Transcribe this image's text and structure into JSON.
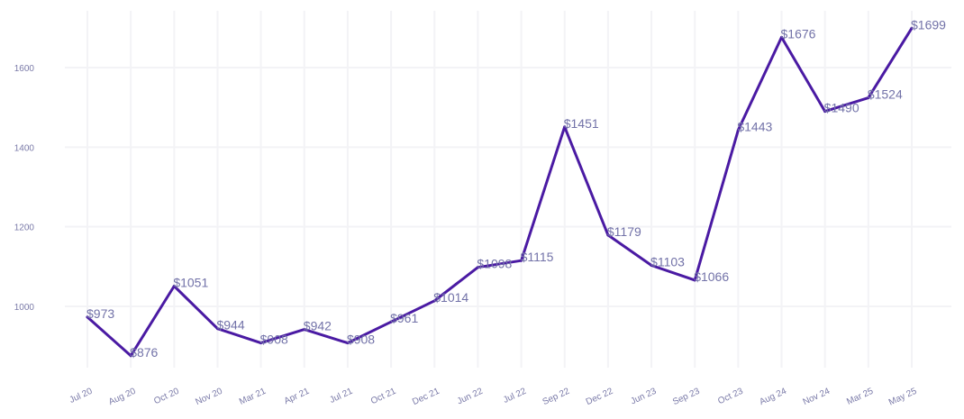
{
  "colors": {
    "line": "#4a1aa3",
    "labels": "#7272a8",
    "ticks": "#7a7aa8",
    "grid": "#f3f3f6"
  },
  "chart_data": {
    "type": "line",
    "title": "",
    "xlabel": "",
    "ylabel": "",
    "grid": true,
    "legend": "none",
    "ylim": [
      840,
      1720
    ],
    "y_ticks": [
      1000,
      1200,
      1400,
      1600
    ],
    "categories": [
      "Jul 20",
      "Aug 20",
      "Oct 20",
      "Nov 20",
      "Mar 21",
      "Apr 21",
      "Jul 21",
      "Oct 21",
      "Dec 21",
      "Jun 22",
      "Jul 22",
      "Sep 22",
      "Dec 22",
      "Jun 23",
      "Sep 23",
      "Oct 23",
      "Aug 24",
      "Nov 24",
      "Mar 25",
      "May 25"
    ],
    "series": [
      {
        "values": [
          973,
          876,
          1051,
          944,
          908,
          942,
          908,
          961,
          1014,
          1098,
          1115,
          1451,
          1179,
          1103,
          1066,
          1443,
          1676,
          1490,
          1524,
          1699
        ],
        "data_labels": [
          "$973",
          "$876",
          "$1051",
          "$944",
          "$908",
          "$942",
          "$908",
          "$961",
          "$1014",
          "$1098",
          "$1115",
          "$1451",
          "$1179",
          "$1103",
          "$1066",
          "$1443",
          "$1676",
          "$1490",
          "$1524",
          "$1699"
        ]
      }
    ]
  }
}
